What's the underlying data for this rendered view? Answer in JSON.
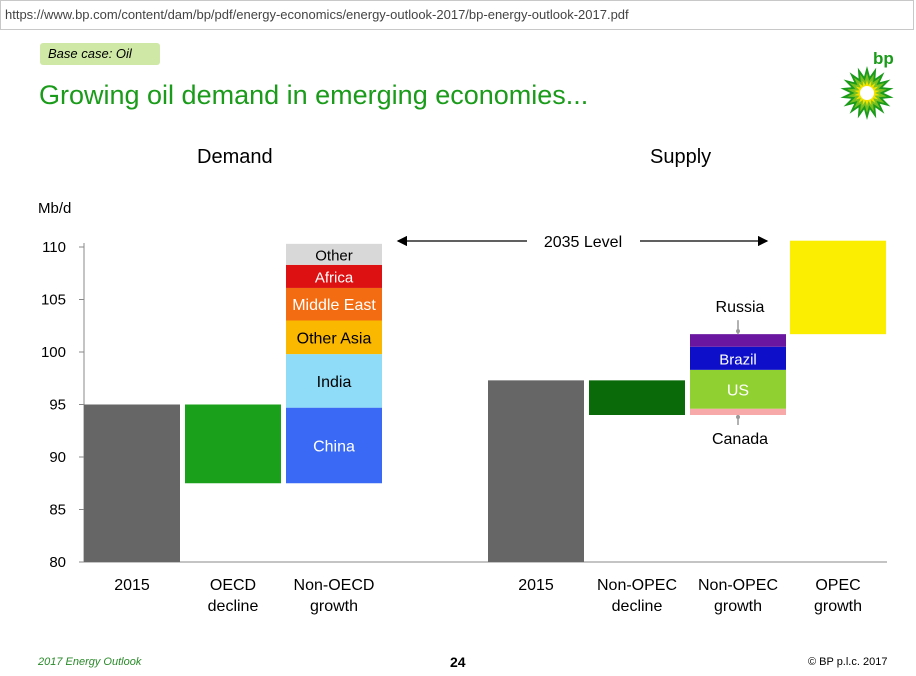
{
  "browser": {
    "url": "https://www.bp.com/content/dam/bp/pdf/energy-economics/energy-outlook-2017/bp-energy-outlook-2017.pdf"
  },
  "slide": {
    "badge": "Base case: Oil",
    "title": "Growing oil demand in emerging economies...",
    "logo_text": "bp",
    "demand_title": "Demand",
    "supply_title": "Supply",
    "footer_left": "2017 Energy Outlook",
    "page_number": "24",
    "footer_right": "© BP p.l.c. 2017"
  },
  "colors": {
    "brand_green": "#1a9b1a",
    "gray": "#666666",
    "oecd_green": "#1aa01a",
    "china": "#3a6af5",
    "india": "#8fdcf8",
    "other_asia": "#fbb800",
    "middle_east": "#f46c12",
    "africa": "#dd1111",
    "other": "#d8d8d8",
    "non_opec_decline": "#0a6a0a",
    "canada": "#f7a8a8",
    "us": "#90d030",
    "brazil": "#0d10c8",
    "russia": "#6a16a0",
    "opec": "#fbee00"
  },
  "chart_data": {
    "type": "bar",
    "subtype": "waterfall",
    "ylabel": "Mb/d",
    "ylim": [
      80,
      111
    ],
    "yticks": [
      80,
      85,
      90,
      95,
      100,
      105,
      110
    ],
    "annotation": "2035 Level",
    "demand": {
      "title": "Demand",
      "bars": [
        {
          "label": "2015",
          "label_lines": [
            "2015"
          ],
          "base": 80,
          "top": 95,
          "color_key": "gray"
        },
        {
          "label": "OECD decline",
          "label_lines": [
            "OECD",
            "decline"
          ],
          "base": 87.5,
          "top": 95,
          "color_key": "oecd_green"
        },
        {
          "label": "Non-OECD growth",
          "label_lines": [
            "Non-OECD",
            "growth"
          ],
          "segments": [
            {
              "name": "China",
              "base": 87.5,
              "top": 94.7,
              "color_key": "china",
              "text_color": "#ffffff"
            },
            {
              "name": "India",
              "base": 94.7,
              "top": 99.8,
              "color_key": "india",
              "text_color": "#000000"
            },
            {
              "name": "Other Asia",
              "base": 99.8,
              "top": 103.0,
              "color_key": "other_asia",
              "text_color": "#000000"
            },
            {
              "name": "Middle East",
              "base": 103.0,
              "top": 106.1,
              "color_key": "middle_east",
              "text_color": "#ffffff"
            },
            {
              "name": "Africa",
              "base": 106.1,
              "top": 108.3,
              "color_key": "africa",
              "text_color": "#ffffff"
            },
            {
              "name": "Other",
              "base": 108.3,
              "top": 110.3,
              "color_key": "other",
              "text_color": "#000000"
            }
          ]
        }
      ]
    },
    "supply": {
      "title": "Supply",
      "bars": [
        {
          "label": "2015",
          "label_lines": [
            "2015"
          ],
          "base": 80,
          "top": 97.3,
          "color_key": "gray"
        },
        {
          "label": "Non-OPEC decline",
          "label_lines": [
            "Non-OPEC",
            "decline"
          ],
          "base": 94.0,
          "top": 97.3,
          "color_key": "non_opec_decline"
        },
        {
          "label": "Non-OPEC growth",
          "label_lines": [
            "Non-OPEC",
            "growth"
          ],
          "segments": [
            {
              "name": "Canada",
              "base": 94.0,
              "top": 94.6,
              "color_key": "canada",
              "callout": "below"
            },
            {
              "name": "US",
              "base": 94.6,
              "top": 98.3,
              "color_key": "us",
              "text_color": "#ffffff"
            },
            {
              "name": "Brazil",
              "base": 98.3,
              "top": 100.5,
              "color_key": "brazil",
              "text_color": "#ffffff"
            },
            {
              "name": "Russia",
              "base": 100.5,
              "top": 101.7,
              "color_key": "russia",
              "callout": "above"
            }
          ]
        },
        {
          "label": "OPEC growth",
          "label_lines": [
            "OPEC",
            "growth"
          ],
          "base": 101.7,
          "top": 110.6,
          "color_key": "opec"
        }
      ]
    }
  }
}
